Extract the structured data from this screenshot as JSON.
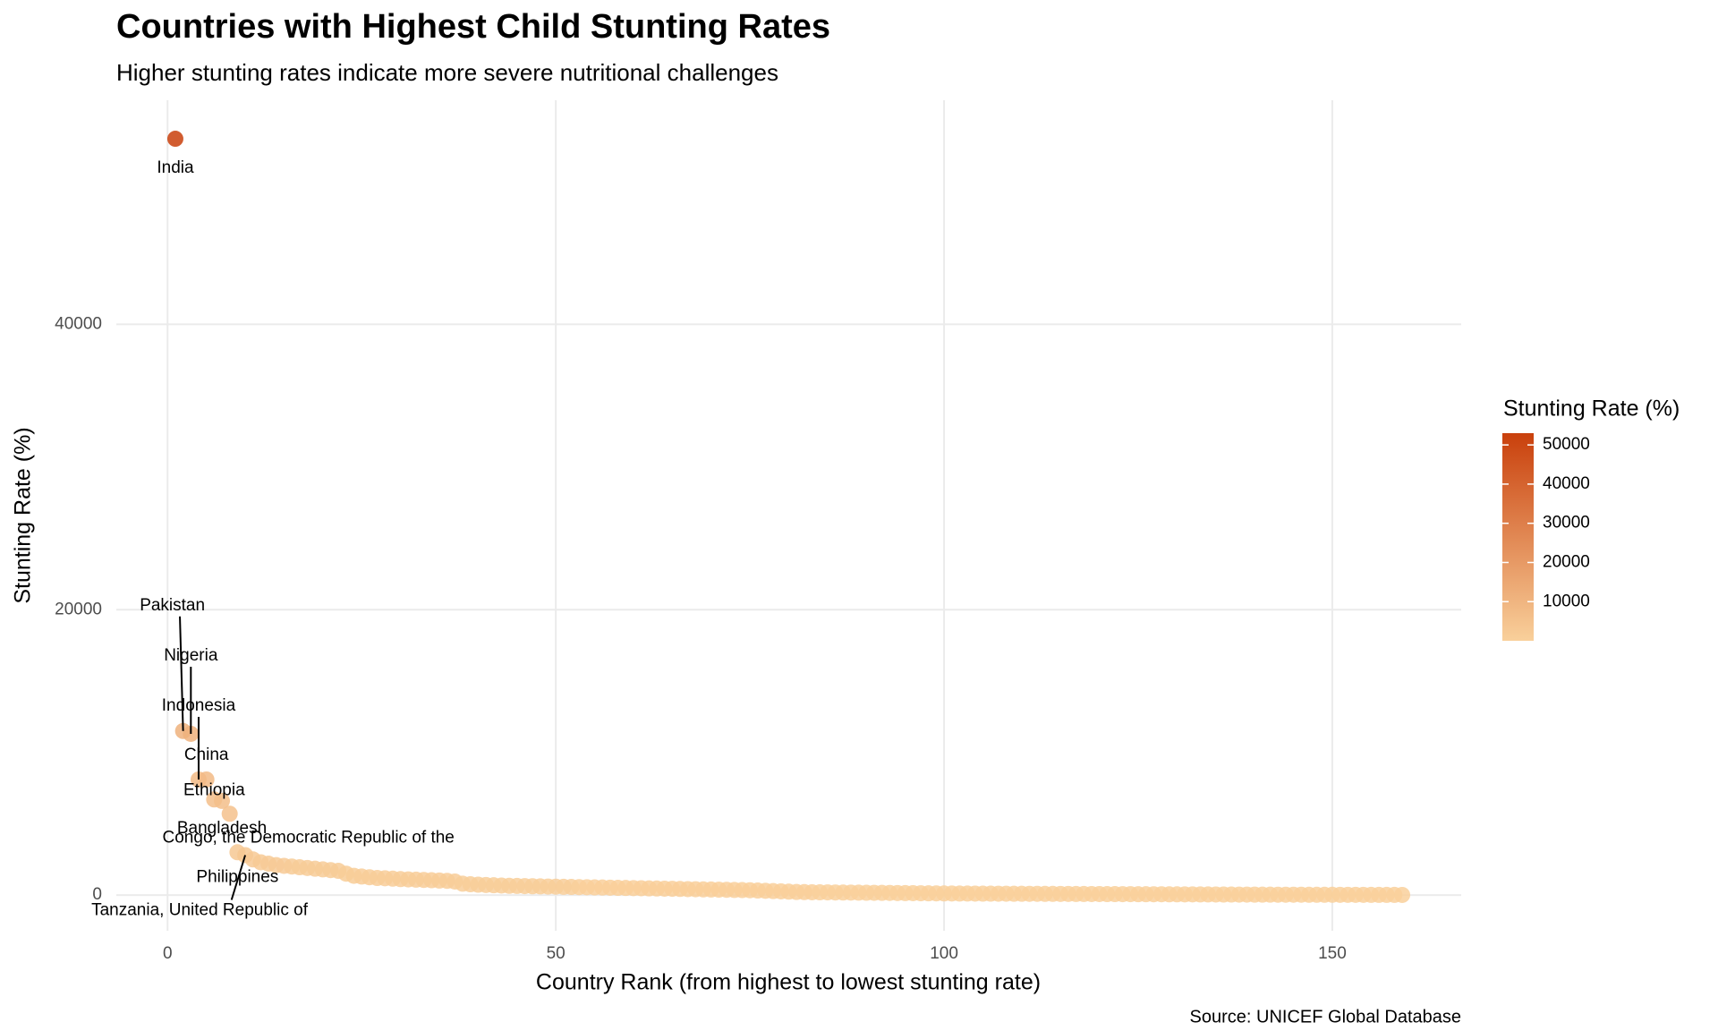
{
  "chart_data": {
    "type": "scatter",
    "title": "Countries with Highest Child Stunting Rates",
    "subtitle": "Higher stunting rates indicate more severe nutritional challenges",
    "x_label": "Country Rank (from highest to lowest stunting rate)",
    "y_label": "Stunting Rate (%)",
    "caption": "Source: UNICEF Global Database",
    "xlim": [
      -6.6,
      166.6
    ],
    "xticks": [
      0,
      50,
      100,
      150
    ],
    "ylim": [
      -2500,
      55700
    ],
    "yticks": [
      0,
      20000,
      40000
    ],
    "grid": true,
    "colorbar": {
      "title": "Stunting Rate (%)",
      "lim": [
        12,
        53000
      ],
      "ticks": [
        10000,
        20000,
        30000,
        40000,
        50000
      ],
      "colors": [
        "#f9d09b",
        "#c9400c"
      ],
      "position": "right"
    },
    "x": [
      1,
      2,
      3,
      4,
      5,
      6,
      7,
      8,
      9,
      10,
      11,
      12,
      13,
      14,
      15,
      16,
      17,
      18,
      19,
      20,
      21,
      22,
      23,
      24,
      25,
      26,
      27,
      28,
      29,
      30,
      31,
      32,
      33,
      34,
      35,
      36,
      37,
      38,
      39,
      40,
      41,
      42,
      43,
      44,
      45,
      46,
      47,
      48,
      49,
      50,
      51,
      52,
      53,
      54,
      55,
      56,
      57,
      58,
      59,
      60,
      61,
      62,
      63,
      64,
      65,
      66,
      67,
      68,
      69,
      70,
      71,
      72,
      73,
      74,
      75,
      76,
      77,
      78,
      79,
      80,
      81,
      82,
      83,
      84,
      85,
      86,
      87,
      88,
      89,
      90,
      91,
      92,
      93,
      94,
      95,
      96,
      97,
      98,
      99,
      100,
      101,
      102,
      103,
      104,
      105,
      106,
      107,
      108,
      109,
      110,
      111,
      112,
      113,
      114,
      115,
      116,
      117,
      118,
      119,
      120,
      121,
      122,
      123,
      124,
      125,
      126,
      127,
      128,
      129,
      130,
      131,
      132,
      133,
      134,
      135,
      136,
      137,
      138,
      139,
      140,
      141,
      142,
      143,
      144,
      145,
      146,
      147,
      148,
      149,
      150,
      151,
      152,
      153,
      154,
      155,
      156,
      157,
      158,
      159
    ],
    "values": [
      53000,
      11500,
      11300,
      8100,
      8100,
      6700,
      6600,
      5700,
      3000,
      2800,
      2500,
      2300,
      2200,
      2100,
      2050,
      2000,
      1950,
      1900,
      1850,
      1800,
      1750,
      1700,
      1500,
      1350,
      1300,
      1250,
      1200,
      1180,
      1150,
      1120,
      1100,
      1080,
      1060,
      1040,
      1020,
      1000,
      950,
      800,
      760,
      730,
      710,
      690,
      670,
      650,
      640,
      630,
      620,
      610,
      600,
      590,
      580,
      570,
      560,
      550,
      540,
      530,
      520,
      510,
      500,
      490,
      480,
      470,
      460,
      450,
      440,
      430,
      420,
      410,
      400,
      390,
      380,
      370,
      360,
      350,
      340,
      320,
      300,
      280,
      260,
      240,
      220,
      210,
      200,
      195,
      190,
      185,
      180,
      175,
      170,
      165,
      160,
      155,
      150,
      145,
      140,
      135,
      130,
      125,
      120,
      115,
      112,
      110,
      108,
      105,
      102,
      100,
      98,
      96,
      94,
      92,
      90,
      88,
      86,
      84,
      82,
      80,
      78,
      76,
      74,
      72,
      70,
      68,
      66,
      64,
      62,
      60,
      58,
      56,
      54,
      52,
      50,
      48,
      46,
      44,
      42,
      40,
      38,
      36,
      34,
      32,
      30,
      29,
      28,
      27,
      26,
      25,
      24,
      23,
      22,
      21,
      20,
      19,
      18,
      17,
      16,
      15,
      14,
      13,
      12
    ],
    "point_labels": [
      "India",
      "Pakistan",
      "Nigeria",
      "Indonesia",
      "China",
      "Ethiopia",
      "Bangladesh",
      "Congo, the Democratic Republic of the",
      "Philippines",
      "Tanzania, United Republic of",
      null,
      null,
      null,
      null,
      null,
      null,
      null,
      null,
      null,
      null,
      null,
      null,
      null,
      null,
      null,
      null,
      null,
      null,
      null,
      null,
      null,
      null,
      null,
      null,
      null,
      null,
      null,
      null,
      null,
      null,
      null,
      null,
      null,
      null,
      null,
      null,
      null,
      null,
      null,
      null,
      null,
      null,
      null,
      null,
      null,
      null,
      null,
      null,
      null,
      null,
      null,
      null,
      null,
      null,
      null,
      null,
      null,
      null,
      null,
      null,
      null,
      null,
      null,
      null,
      null,
      null,
      null,
      null,
      null,
      null,
      null,
      null,
      null,
      null,
      null,
      null,
      null,
      null,
      null,
      null,
      null,
      null,
      null,
      null,
      null,
      null,
      null,
      null,
      null,
      null,
      null,
      null,
      null,
      null,
      null,
      null,
      null,
      null,
      null,
      null,
      null,
      null,
      null,
      null,
      null,
      null,
      null,
      null,
      null,
      null,
      null,
      null,
      null,
      null,
      null,
      null,
      null,
      null,
      null,
      null,
      null,
      null,
      null,
      null,
      null,
      null,
      null,
      null,
      null,
      null,
      null,
      null,
      null,
      null,
      null,
      null,
      null,
      null,
      null,
      null,
      null,
      null,
      null,
      null,
      null,
      null,
      null,
      null,
      null
    ]
  }
}
